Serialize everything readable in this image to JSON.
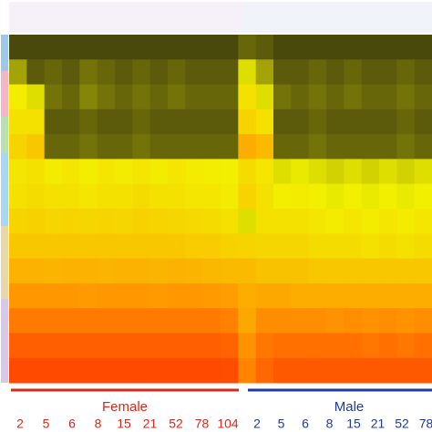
{
  "chart_data": {
    "type": "heatmap",
    "zlim": [
      0,
      100
    ],
    "colorscale": [
      "#2c2b0e",
      "#f2f200",
      "#ff9c00",
      "#ff3c00"
    ],
    "z": [
      [
        5,
        5,
        5,
        5,
        5,
        5,
        5,
        5,
        5,
        5,
        5,
        5,
        5,
        10,
        8,
        5,
        5,
        5,
        5,
        5,
        5,
        5,
        5,
        5
      ],
      [
        20,
        8,
        10,
        8,
        12,
        10,
        8,
        10,
        8,
        10,
        8,
        8,
        8,
        30,
        20,
        8,
        8,
        10,
        8,
        10,
        8,
        8,
        10,
        8
      ],
      [
        35,
        30,
        12,
        10,
        15,
        12,
        10,
        12,
        10,
        12,
        10,
        10,
        10,
        40,
        30,
        12,
        10,
        12,
        10,
        12,
        10,
        10,
        12,
        10
      ],
      [
        40,
        40,
        8,
        8,
        10,
        8,
        8,
        10,
        8,
        8,
        8,
        8,
        8,
        45,
        40,
        8,
        8,
        10,
        8,
        8,
        8,
        8,
        10,
        8
      ],
      [
        45,
        50,
        10,
        10,
        12,
        10,
        10,
        12,
        10,
        10,
        10,
        10,
        10,
        60,
        55,
        10,
        10,
        12,
        10,
        10,
        10,
        10,
        12,
        10
      ],
      [
        38,
        40,
        36,
        38,
        35,
        38,
        36,
        38,
        36,
        38,
        36,
        35,
        34,
        42,
        38,
        30,
        32,
        30,
        28,
        30,
        28,
        30,
        28,
        30
      ],
      [
        40,
        42,
        40,
        40,
        38,
        40,
        40,
        42,
        40,
        40,
        38,
        38,
        36,
        45,
        40,
        35,
        36,
        34,
        32,
        34,
        32,
        34,
        32,
        34
      ],
      [
        45,
        46,
        44,
        45,
        44,
        45,
        44,
        46,
        45,
        44,
        43,
        42,
        40,
        30,
        40,
        40,
        40,
        38,
        36,
        38,
        36,
        38,
        36,
        38
      ],
      [
        50,
        50,
        50,
        50,
        50,
        50,
        50,
        50,
        50,
        50,
        48,
        48,
        46,
        45,
        44,
        44,
        44,
        42,
        42,
        42,
        40,
        42,
        40,
        42
      ],
      [
        58,
        58,
        57,
        58,
        58,
        57,
        58,
        58,
        57,
        58,
        57,
        56,
        55,
        55,
        52,
        52,
        52,
        50,
        50,
        50,
        50,
        50,
        50,
        50
      ],
      [
        68,
        68,
        68,
        68,
        67,
        68,
        68,
        68,
        67,
        68,
        68,
        67,
        66,
        60,
        62,
        62,
        60,
        60,
        60,
        60,
        60,
        60,
        60,
        60
      ],
      [
        78,
        78,
        78,
        78,
        78,
        78,
        78,
        78,
        78,
        78,
        78,
        78,
        76,
        62,
        72,
        72,
        72,
        72,
        70,
        72,
        70,
        72,
        70,
        72
      ],
      [
        88,
        88,
        88,
        88,
        88,
        88,
        88,
        88,
        88,
        88,
        88,
        88,
        86,
        70,
        80,
        82,
        82,
        82,
        82,
        82,
        80,
        82,
        80,
        82
      ],
      [
        95,
        95,
        95,
        95,
        95,
        95,
        95,
        95,
        95,
        95,
        95,
        95,
        94,
        75,
        85,
        90,
        90,
        90,
        90,
        90,
        90,
        90,
        90,
        90
      ]
    ],
    "groups": [
      {
        "name": "Female",
        "color": "#d42a1e",
        "categories": [
          "2",
          "5",
          "6",
          "8",
          "15",
          "21",
          "52",
          "78",
          "104"
        ]
      },
      {
        "name": "Male",
        "color": "#1d3c9e",
        "categories": [
          "2",
          "5",
          "6",
          "8",
          "15",
          "21",
          "52",
          "78"
        ]
      }
    ]
  }
}
